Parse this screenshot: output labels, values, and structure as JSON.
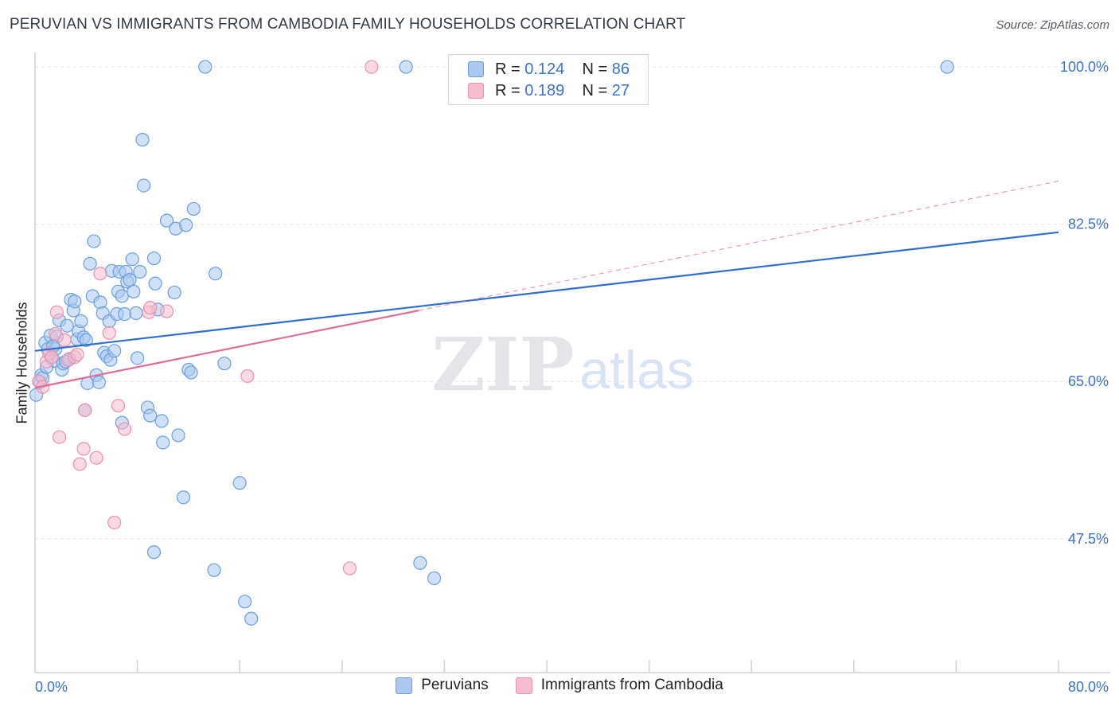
{
  "title": "PERUVIAN VS IMMIGRANTS FROM CAMBODIA FAMILY HOUSEHOLDS CORRELATION CHART",
  "source": "Source: ZipAtlas.com",
  "watermark": {
    "zip": "ZIP",
    "atlas": "atlas"
  },
  "legend": {
    "r_label": "R =",
    "n_label": "N =",
    "rows": [
      {
        "r": "0.124",
        "n": "86"
      },
      {
        "r": "0.189",
        "n": "27"
      }
    ]
  },
  "colors": {
    "blue_fill": "#aac8f0",
    "blue_stroke": "#6a9ede",
    "blue_line": "#2f6fcf",
    "pink_fill": "#f7bccd",
    "pink_stroke": "#e892ac",
    "pink_line": "#e06d96",
    "tick_text": "#3b73c9",
    "grid": "#dfe2e8",
    "axis": "#cfd3da"
  },
  "chart_data": {
    "type": "scatter",
    "title": "PERUVIAN VS IMMIGRANTS FROM CAMBODIA FAMILY HOUSEHOLDS CORRELATION CHART",
    "xlabel": "",
    "ylabel": "Family Households",
    "xlim": [
      0,
      80
    ],
    "ylim": [
      32.6,
      101.6
    ],
    "x_tick_labels": [
      "0.0%",
      "80.0%"
    ],
    "y_ticks": [
      100,
      82.5,
      65,
      47.5
    ],
    "y_tick_labels": [
      "100.0%",
      "82.5%",
      "65.0%",
      "47.5%"
    ],
    "grid": true,
    "legend_position": "top-center",
    "series": [
      {
        "name": "Peruvians",
        "r": 0.124,
        "n": 86,
        "trend": {
          "x": [
            0,
            80
          ],
          "y": [
            68.4,
            81.6
          ],
          "style": "solid"
        },
        "points": [
          [
            0.1,
            63.5
          ],
          [
            0.4,
            64.9
          ],
          [
            0.5,
            65.7
          ],
          [
            0.6,
            65.4
          ],
          [
            0.8,
            69.3
          ],
          [
            1.0,
            68.6
          ],
          [
            1.2,
            70.1
          ],
          [
            1.3,
            67.7
          ],
          [
            1.5,
            67.3
          ],
          [
            1.6,
            68.6
          ],
          [
            1.7,
            70.0
          ],
          [
            1.9,
            71.8
          ],
          [
            2.1,
            66.3
          ],
          [
            2.2,
            67.0
          ],
          [
            2.5,
            71.2
          ],
          [
            2.7,
            67.5
          ],
          [
            2.8,
            74.1
          ],
          [
            3.0,
            72.9
          ],
          [
            3.1,
            73.9
          ],
          [
            3.3,
            69.7
          ],
          [
            3.4,
            70.6
          ],
          [
            3.6,
            71.7
          ],
          [
            3.8,
            69.9
          ],
          [
            4.0,
            69.6
          ],
          [
            4.1,
            64.8
          ],
          [
            4.3,
            78.1
          ],
          [
            4.5,
            74.5
          ],
          [
            4.6,
            80.6
          ],
          [
            4.8,
            65.7
          ],
          [
            5.0,
            64.9
          ],
          [
            5.1,
            73.8
          ],
          [
            5.3,
            72.6
          ],
          [
            5.4,
            68.2
          ],
          [
            5.6,
            67.8
          ],
          [
            5.8,
            71.7
          ],
          [
            5.9,
            67.4
          ],
          [
            6.0,
            77.3
          ],
          [
            6.2,
            68.4
          ],
          [
            6.4,
            72.5
          ],
          [
            6.5,
            75.0
          ],
          [
            6.6,
            77.2
          ],
          [
            6.8,
            74.5
          ],
          [
            7.0,
            72.5
          ],
          [
            7.1,
            77.2
          ],
          [
            7.2,
            76.1
          ],
          [
            7.4,
            76.3
          ],
          [
            7.6,
            78.6
          ],
          [
            7.7,
            75.0
          ],
          [
            7.9,
            72.6
          ],
          [
            8.0,
            67.6
          ],
          [
            8.2,
            77.2
          ],
          [
            8.4,
            91.9
          ],
          [
            8.5,
            86.8
          ],
          [
            8.8,
            62.1
          ],
          [
            9.0,
            61.2
          ],
          [
            9.3,
            78.7
          ],
          [
            9.4,
            75.9
          ],
          [
            9.6,
            73.0
          ],
          [
            9.9,
            60.6
          ],
          [
            10.0,
            58.2
          ],
          [
            10.3,
            82.9
          ],
          [
            11.0,
            82.0
          ],
          [
            11.2,
            59.0
          ],
          [
            11.6,
            52.1
          ],
          [
            11.8,
            82.4
          ],
          [
            12.0,
            66.3
          ],
          [
            12.2,
            66.0
          ],
          [
            12.4,
            84.2
          ],
          [
            13.3,
            100.0
          ],
          [
            14.0,
            44.0
          ],
          [
            14.1,
            77.0
          ],
          [
            14.8,
            67.0
          ],
          [
            16.0,
            53.7
          ],
          [
            16.4,
            40.5
          ],
          [
            16.9,
            38.6
          ],
          [
            29.0,
            100.0
          ],
          [
            30.1,
            44.8
          ],
          [
            71.3,
            100.0
          ],
          [
            31.2,
            43.1
          ],
          [
            9.3,
            46.0
          ],
          [
            1.4,
            68.9
          ],
          [
            2.4,
            67.2
          ],
          [
            3.9,
            61.8
          ],
          [
            6.8,
            60.4
          ],
          [
            10.9,
            74.9
          ],
          [
            0.9,
            66.6
          ]
        ]
      },
      {
        "name": "Immigrants from Cambodia",
        "r": 0.189,
        "n": 27,
        "trend": {
          "x": [
            0,
            30
          ],
          "y": [
            64.3,
            72.9
          ],
          "style": "solid"
        },
        "trend_extension": {
          "x": [
            30,
            80
          ],
          "y": [
            72.9,
            87.3
          ],
          "style": "dashed"
        },
        "points": [
          [
            0.3,
            65.0
          ],
          [
            0.6,
            64.4
          ],
          [
            0.9,
            67.2
          ],
          [
            1.1,
            68.1
          ],
          [
            1.3,
            67.7
          ],
          [
            1.6,
            70.3
          ],
          [
            1.7,
            72.7
          ],
          [
            1.9,
            58.8
          ],
          [
            2.3,
            69.6
          ],
          [
            2.6,
            67.4
          ],
          [
            3.1,
            67.7
          ],
          [
            3.3,
            68.0
          ],
          [
            3.5,
            55.8
          ],
          [
            3.8,
            57.5
          ],
          [
            3.9,
            61.8
          ],
          [
            4.8,
            56.5
          ],
          [
            5.1,
            77.0
          ],
          [
            5.8,
            70.4
          ],
          [
            6.2,
            49.3
          ],
          [
            6.5,
            62.3
          ],
          [
            7.0,
            59.7
          ],
          [
            8.9,
            72.7
          ],
          [
            9.0,
            73.2
          ],
          [
            10.3,
            72.8
          ],
          [
            16.6,
            65.6
          ],
          [
            24.6,
            44.2
          ],
          [
            26.3,
            100.0
          ]
        ]
      }
    ]
  }
}
